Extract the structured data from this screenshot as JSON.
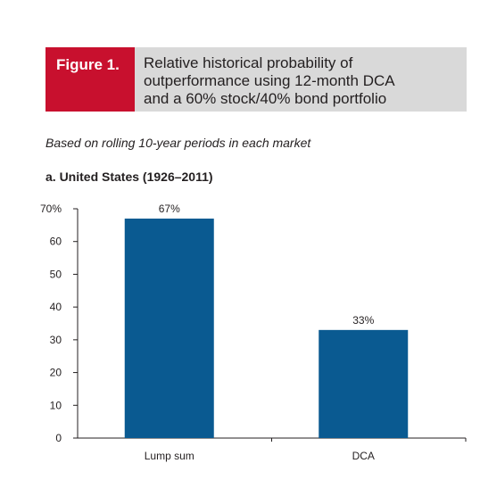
{
  "figure": {
    "tag": "Figure 1.",
    "title": "Relative historical probability of\noutperformance using 12-month DCA\nand a 60% stock/40% bond portfolio",
    "subtitle": "Based on rolling 10-year periods in each market",
    "panel_title": "a. United States (1926–2011)",
    "colors": {
      "tag_bg": "#c8102e",
      "header_bg": "#d9d9d9",
      "bar": "#0a5a91"
    }
  },
  "chart_data": {
    "type": "bar",
    "title": "a. United States (1926–2011)",
    "categories": [
      "Lump sum",
      "DCA"
    ],
    "values": [
      67,
      33
    ],
    "data_labels": [
      "67%",
      "33%"
    ],
    "yticks": [
      0,
      10,
      20,
      30,
      40,
      50,
      60,
      70
    ],
    "ytick_labels": [
      "0",
      "10",
      "20",
      "30",
      "40",
      "50",
      "60",
      "70%"
    ],
    "ylim": [
      0,
      70
    ],
    "xlabel": "",
    "ylabel": "",
    "grid": false,
    "bar_color": "#0a5a91"
  }
}
